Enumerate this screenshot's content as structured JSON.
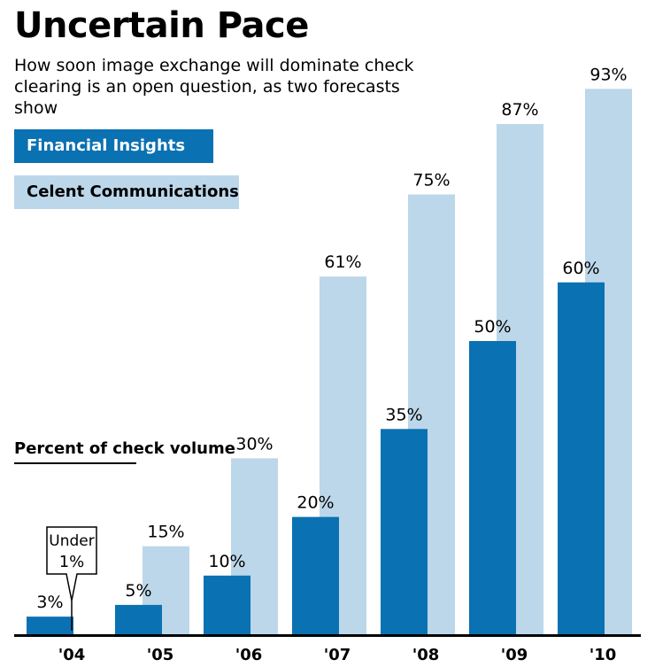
{
  "chart_data": {
    "type": "bar",
    "title": "Uncertain Pace",
    "subtitle": "How soon image exchange will dominate check clearing is an open question, as two forecasts show",
    "ylabel": "Percent of check volume",
    "xlabel": "",
    "categories": [
      "'04",
      "'05",
      "'06",
      "'07",
      "'08",
      "'09",
      "'10"
    ],
    "series": [
      {
        "name": "Financial Insights",
        "values": [
          3,
          5,
          10,
          20,
          35,
          50,
          60
        ],
        "labels": [
          "3%",
          "5%",
          "10%",
          "20%",
          "35%",
          "50%",
          "60%"
        ],
        "color": "#0a71b2"
      },
      {
        "name": "Celent Communications",
        "values": [
          0.5,
          15,
          30,
          61,
          75,
          87,
          93
        ],
        "labels": [
          "",
          "15%",
          "30%",
          "61%",
          "75%",
          "87%",
          "93%"
        ],
        "color": "#bcd7ea"
      }
    ],
    "annotations": [
      {
        "text_line1": "Under",
        "text_line2": "1%",
        "category": "'04",
        "series": "Celent Communications"
      }
    ],
    "ylim": [
      0,
      100
    ],
    "grid": false,
    "legend": "top-left"
  }
}
